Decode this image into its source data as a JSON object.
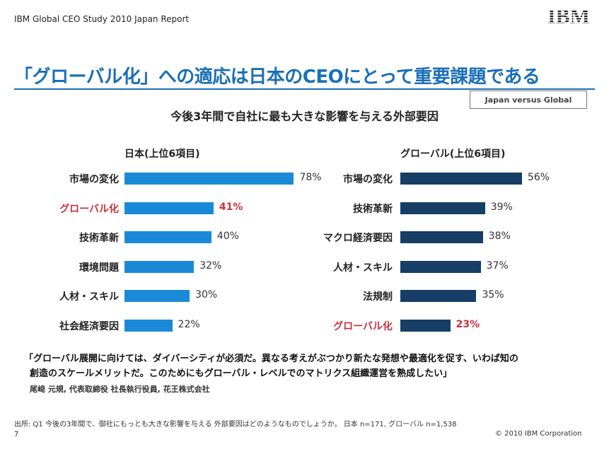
{
  "header": {
    "report_name": "IBM Global CEO Study 2010 Japan Report",
    "logo_text": "IBM"
  },
  "title": "「グローバル化」への適応は日本のCEOにとって重要課題である",
  "badge": "Japan versus Global",
  "chart_title": "今後3年間で自社に最も大きな影響を与える外部要因",
  "colors": {
    "title_blue": "#1b6fb8",
    "japan_bar": "#1a8ad8",
    "global_bar": "#163e66",
    "highlight": "#c8323d"
  },
  "chart_data": [
    {
      "type": "bar",
      "orientation": "horizontal",
      "title": "日本(上位6項目)",
      "categories": [
        "市場の変化",
        "グローバル化",
        "技術革新",
        "環境問題",
        "人材・スキル",
        "社会経済要因"
      ],
      "values": [
        78,
        41,
        40,
        32,
        30,
        22
      ],
      "value_labels": [
        "78%",
        "41%",
        "40%",
        "32%",
        "30%",
        "22%"
      ],
      "highlighted": [
        false,
        true,
        false,
        false,
        false,
        false
      ],
      "unit": "%",
      "xlim": [
        0,
        100
      ]
    },
    {
      "type": "bar",
      "orientation": "horizontal",
      "title": "グローバル(上位6項目)",
      "categories": [
        "市場の変化",
        "技術革新",
        "マクロ経済要因",
        "人材・スキル",
        "法規制",
        "グローバル化"
      ],
      "values": [
        56,
        39,
        38,
        37,
        35,
        23
      ],
      "value_labels": [
        "56%",
        "39%",
        "38%",
        "37%",
        "35%",
        "23%"
      ],
      "highlighted": [
        false,
        false,
        false,
        false,
        false,
        true
      ],
      "unit": "%",
      "xlim": [
        0,
        100
      ]
    }
  ],
  "quote": {
    "line1": "「グローバル展開に向けては、ダイバーシティが必須だ。異なる考えがぶつかり新たな発想や最適化を促す、いわば知の",
    "line2": "創造のスケールメリットだ。このためにもグローバル・レベルでのマトリクス組織運営を熟成したい」",
    "attribution": "尾﨑 元規, 代表取締役 社長執行役員, 花王株式会社"
  },
  "footer": {
    "source": "出所: Q1 今後の3年間で、御社にもっとも大きな影響を与える 外部要因はどのようなものでしょうか。 日本 n=171, グローバル n=1,538",
    "page": "7",
    "copyright": "© 2010 IBM Corporation"
  }
}
